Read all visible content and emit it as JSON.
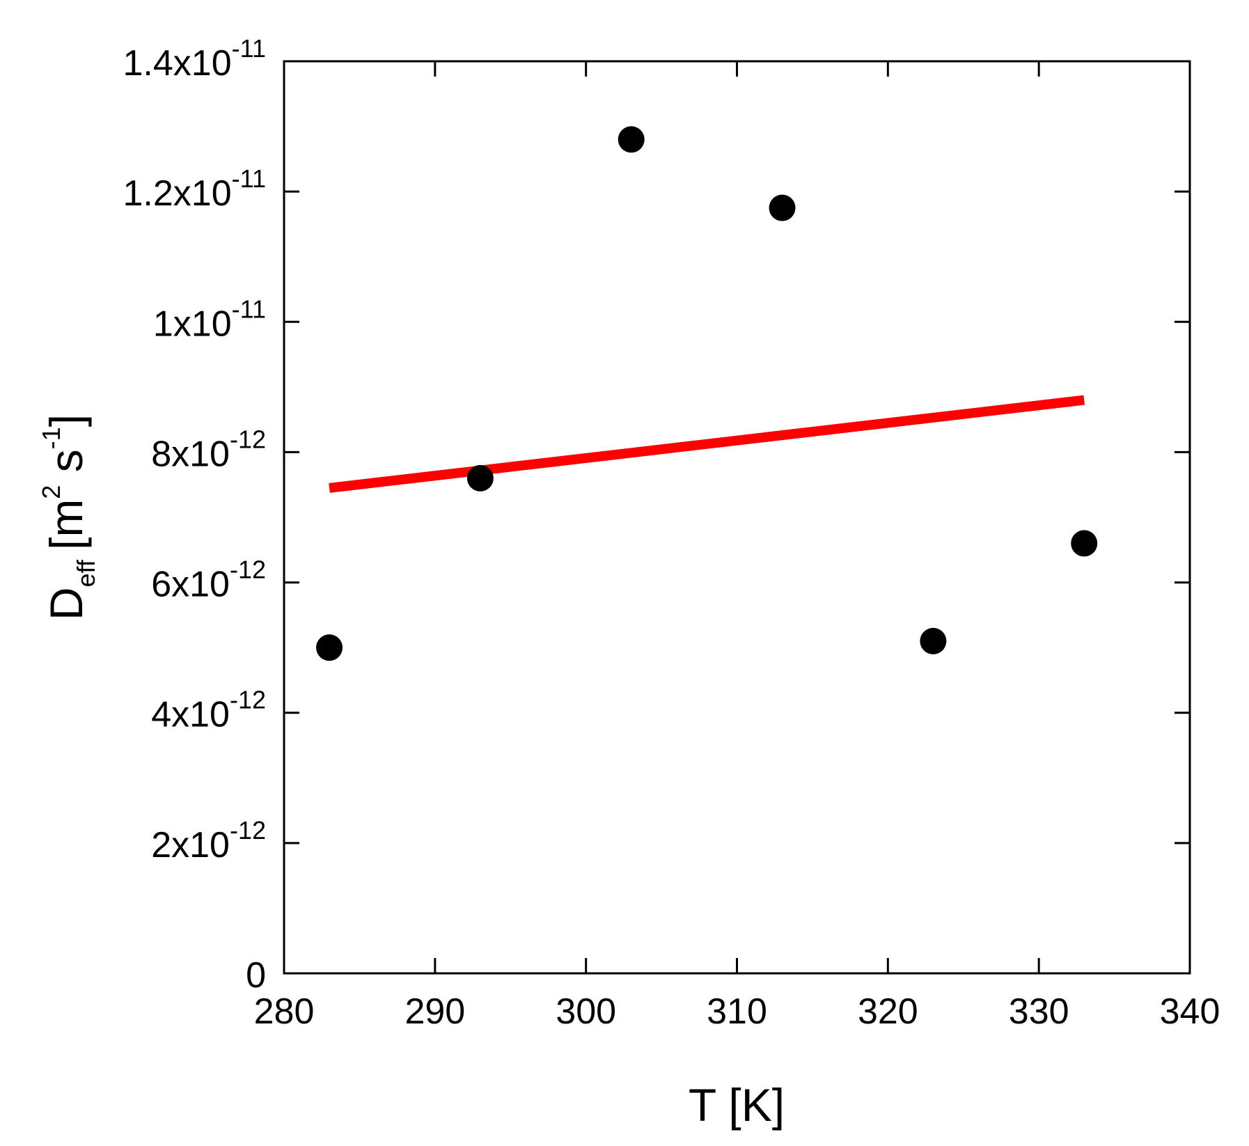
{
  "chart_data": {
    "type": "scatter",
    "xlabel": "T [K]",
    "ylabel": {
      "main": "D",
      "subscript": "eff",
      "units_open": "[m",
      "units_exp1": "2",
      "units_mid": " s",
      "units_exp2": "-1",
      "units_close": "]"
    },
    "xlim": [
      280,
      340
    ],
    "ylim": [
      0,
      1.4e-11
    ],
    "x_ticks": [
      {
        "value": 280,
        "label": "280"
      },
      {
        "value": 290,
        "label": "290"
      },
      {
        "value": 300,
        "label": "300"
      },
      {
        "value": 310,
        "label": "310"
      },
      {
        "value": 320,
        "label": "320"
      },
      {
        "value": 330,
        "label": "330"
      },
      {
        "value": 340,
        "label": "340"
      }
    ],
    "y_ticks": [
      {
        "value": 0,
        "mantissa": "0",
        "exponent": ""
      },
      {
        "value": 2e-12,
        "mantissa": "2x10",
        "exponent": "-12"
      },
      {
        "value": 4e-12,
        "mantissa": "4x10",
        "exponent": "-12"
      },
      {
        "value": 6e-12,
        "mantissa": "6x10",
        "exponent": "-12"
      },
      {
        "value": 8e-12,
        "mantissa": "8x10",
        "exponent": "-12"
      },
      {
        "value": 1e-11,
        "mantissa": "1x10",
        "exponent": "-11"
      },
      {
        "value": 1.2e-11,
        "mantissa": "1.2x10",
        "exponent": "-11"
      },
      {
        "value": 1.4e-11,
        "mantissa": "1.4x10",
        "exponent": "-11"
      }
    ],
    "grid": false,
    "series": [
      {
        "kind": "scatter",
        "color": "#000000",
        "x": [
          283,
          293,
          303,
          313,
          323,
          333
        ],
        "y": [
          5e-12,
          7.6e-12,
          1.28e-11,
          1.175e-11,
          5.1e-12,
          6.6e-12
        ]
      },
      {
        "kind": "line",
        "color": "#ff0000",
        "x": [
          283,
          333
        ],
        "y": [
          7.45e-12,
          8.8e-12
        ]
      }
    ]
  }
}
